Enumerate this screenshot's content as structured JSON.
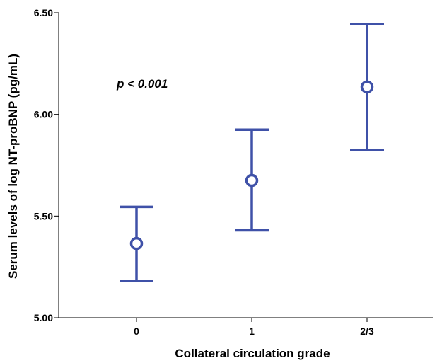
{
  "chart_data": {
    "type": "errorbar",
    "categories": [
      "0",
      "1",
      "2/3"
    ],
    "series": [
      {
        "mean": [
          5.365,
          5.675,
          6.135
        ],
        "lower": [
          5.18,
          5.43,
          5.825
        ],
        "upper": [
          5.545,
          5.925,
          6.445
        ]
      }
    ],
    "xlabel": "Collateral circulation grade",
    "ylabel": "Serum levels of log NT-proBNP (pg/mL)",
    "ylim": [
      5.0,
      6.5
    ],
    "yticks": [
      "5.00",
      "5.50",
      "6.00",
      "6.50"
    ],
    "annotation": "p < 0.001",
    "grid": false,
    "color": "#3f51a8"
  }
}
